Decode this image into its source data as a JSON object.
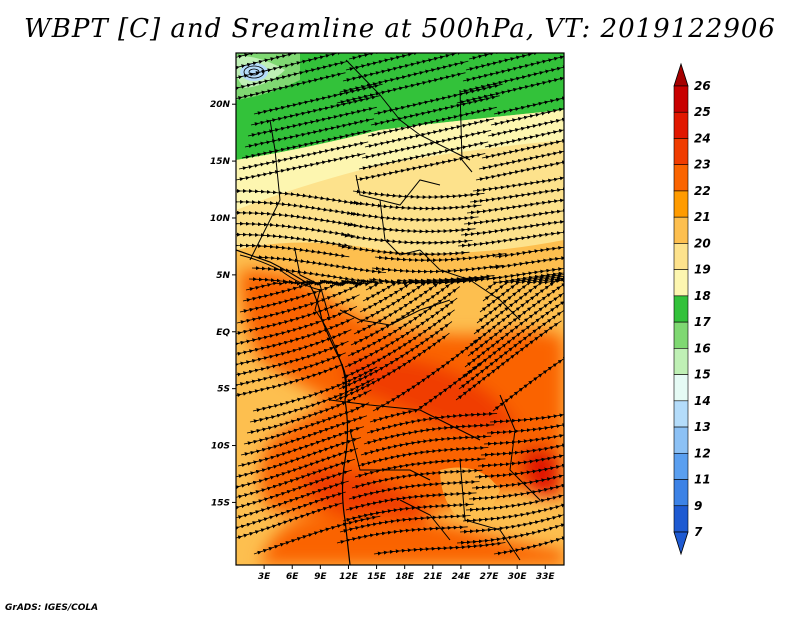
{
  "title": "WBPT [C] and Sreamline at 500hPa, VT: 2019122906",
  "footer": "GrADS: IGES/COLA",
  "map": {
    "lon_range": [
      0,
      35
    ],
    "lat_range": [
      -20.5,
      24.5
    ],
    "lon_ticks": [
      {
        "value": 3,
        "label": "3E"
      },
      {
        "value": 6,
        "label": "6E"
      },
      {
        "value": 9,
        "label": "9E"
      },
      {
        "value": 12,
        "label": "12E"
      },
      {
        "value": 15,
        "label": "15E"
      },
      {
        "value": 18,
        "label": "18E"
      },
      {
        "value": 21,
        "label": "21E"
      },
      {
        "value": 24,
        "label": "24E"
      },
      {
        "value": 27,
        "label": "27E"
      },
      {
        "value": 30,
        "label": "30E"
      },
      {
        "value": 33,
        "label": "33E"
      }
    ],
    "lat_ticks": [
      {
        "value": 20,
        "label": "20N"
      },
      {
        "value": 15,
        "label": "15N"
      },
      {
        "value": 10,
        "label": "10N"
      },
      {
        "value": 5,
        "label": "5N"
      },
      {
        "value": 0,
        "label": "EQ"
      },
      {
        "value": -5,
        "label": "5S"
      },
      {
        "value": -10,
        "label": "10S"
      },
      {
        "value": -15,
        "label": "15S"
      }
    ]
  },
  "colorbar": {
    "levels": [
      {
        "label": "26",
        "color": "#a50000"
      },
      {
        "label": "25",
        "color": "#c80000"
      },
      {
        "label": "24",
        "color": "#e11800"
      },
      {
        "label": "23",
        "color": "#f03c00"
      },
      {
        "label": "22",
        "color": "#fa6400"
      },
      {
        "label": "21",
        "color": "#ff9b00"
      },
      {
        "label": "20",
        "color": "#fdbf4f"
      },
      {
        "label": "19",
        "color": "#fde28c"
      },
      {
        "label": "18",
        "color": "#fdf6b0"
      },
      {
        "label": "17",
        "color": "#33c23a"
      },
      {
        "label": "16",
        "color": "#7fd872"
      },
      {
        "label": "15",
        "color": "#bff0b5"
      },
      {
        "label": "14",
        "color": "#e6fbf5"
      },
      {
        "label": "13",
        "color": "#b4dcfa"
      },
      {
        "label": "12",
        "color": "#8cc1f5"
      },
      {
        "label": "11",
        "color": "#5a9ff0"
      },
      {
        "label": "9",
        "color": "#3c82e6"
      },
      {
        "label": "7",
        "color": "#1e5ad2"
      }
    ]
  }
}
